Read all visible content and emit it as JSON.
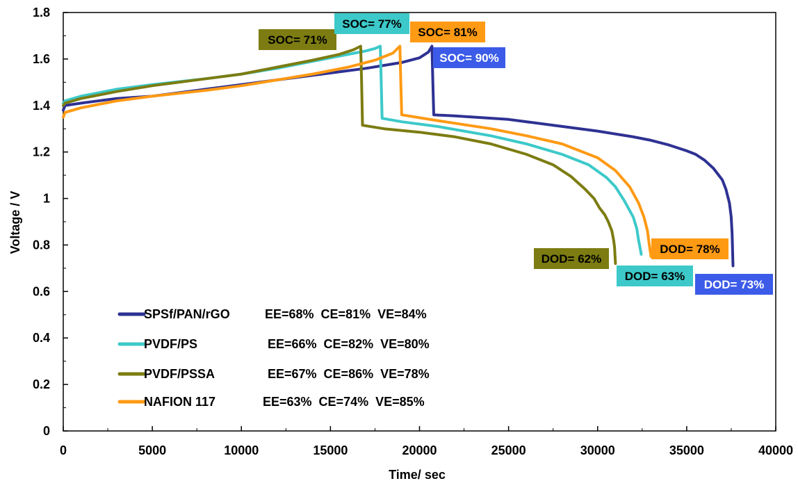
{
  "chart_data": {
    "type": "line",
    "xlabel": "Time/ sec",
    "ylabel": "Voltage / V",
    "xlim": [
      0,
      40000
    ],
    "ylim": [
      0,
      1.8
    ],
    "x_ticks": [
      0,
      5000,
      10000,
      15000,
      20000,
      25000,
      30000,
      35000,
      40000
    ],
    "x_tick_labels": [
      "0",
      "5000",
      "10000",
      "15000",
      "20000",
      "25000",
      "30000",
      "35000",
      "40000"
    ],
    "y_ticks": [
      0,
      0.2,
      0.4,
      0.6,
      0.8,
      1.0,
      1.2,
      1.4,
      1.6,
      1.8
    ],
    "y_tick_labels": [
      "0",
      "0.2",
      "0.4",
      "0.6",
      "0.8",
      "1",
      "1.2",
      "1.4",
      "1.6",
      "1.8"
    ],
    "grid": false,
    "legend_position": "bottom-left",
    "series": [
      {
        "name": "SPSf/PAN/rGO",
        "legend_metrics": "EE=68%  CE=81%  VE=84%",
        "color": "#2E3192",
        "x": [
          0,
          100,
          1000,
          3000,
          5000,
          8000,
          10000,
          12000,
          15000,
          17000,
          19000,
          20000,
          20500,
          20700,
          20750,
          20800,
          22000,
          25000,
          28000,
          30000,
          32000,
          33000,
          34000,
          35000,
          35500,
          36000,
          36500,
          37000,
          37200,
          37400,
          37500,
          37550,
          37600
        ],
        "y": [
          1.38,
          1.4,
          1.41,
          1.43,
          1.44,
          1.47,
          1.49,
          1.51,
          1.54,
          1.56,
          1.585,
          1.605,
          1.63,
          1.655,
          1.5,
          1.36,
          1.355,
          1.34,
          1.31,
          1.29,
          1.265,
          1.25,
          1.23,
          1.205,
          1.19,
          1.165,
          1.13,
          1.08,
          1.04,
          0.98,
          0.92,
          0.85,
          0.71
        ]
      },
      {
        "name": "PVDF/PS",
        "legend_metrics": "EE=66%  CE=82%  VE=80%",
        "color": "#3DC9C9",
        "x": [
          0,
          100,
          1000,
          3000,
          5000,
          8000,
          10000,
          12000,
          14000,
          16000,
          17000,
          17500,
          17800,
          17850,
          17900,
          19000,
          21000,
          24000,
          26000,
          28000,
          29500,
          30500,
          31000,
          31500,
          32000,
          32200,
          32300,
          32400,
          32450
        ],
        "y": [
          1.41,
          1.42,
          1.44,
          1.47,
          1.49,
          1.515,
          1.535,
          1.56,
          1.59,
          1.62,
          1.635,
          1.645,
          1.655,
          1.5,
          1.345,
          1.33,
          1.31,
          1.27,
          1.235,
          1.19,
          1.145,
          1.09,
          1.05,
          0.99,
          0.92,
          0.87,
          0.82,
          0.78,
          0.76
        ]
      },
      {
        "name": "PVDF/PSSA",
        "legend_metrics": "EE=67%  CE=86%  VE=78%",
        "color": "#7C7C12",
        "x": [
          0,
          100,
          1000,
          3000,
          5000,
          8000,
          10000,
          12000,
          14000,
          15500,
          16300,
          16700,
          16750,
          16800,
          18000,
          20000,
          22000,
          24000,
          26000,
          27500,
          28500,
          29300,
          29800,
          30100,
          30400,
          30600,
          30800,
          30900,
          30950,
          31000
        ],
        "y": [
          1.4,
          1.41,
          1.43,
          1.46,
          1.485,
          1.515,
          1.535,
          1.565,
          1.595,
          1.62,
          1.64,
          1.655,
          1.5,
          1.315,
          1.3,
          1.285,
          1.265,
          1.235,
          1.19,
          1.145,
          1.095,
          1.04,
          1.0,
          0.96,
          0.93,
          0.9,
          0.86,
          0.82,
          0.79,
          0.72
        ]
      },
      {
        "name": "NAFION 117",
        "legend_metrics": "EE=63%  CE=74%  VE=85%",
        "color": "#FF9A14",
        "x": [
          0,
          100,
          1000,
          3000,
          5000,
          8000,
          10000,
          12000,
          14000,
          16000,
          17500,
          18500,
          18900,
          18950,
          19000,
          21000,
          24000,
          26000,
          28000,
          30000,
          31000,
          31800,
          32300,
          32600,
          32800,
          32900,
          33000
        ],
        "y": [
          1.35,
          1.37,
          1.39,
          1.42,
          1.44,
          1.465,
          1.485,
          1.51,
          1.535,
          1.565,
          1.595,
          1.625,
          1.655,
          1.5,
          1.36,
          1.335,
          1.3,
          1.27,
          1.235,
          1.175,
          1.12,
          1.05,
          0.98,
          0.92,
          0.86,
          0.8,
          0.75
        ]
      }
    ],
    "annotations": [
      {
        "text": "SOC= 71%",
        "bg": "#7C7C12",
        "fg": "#000000"
      },
      {
        "text": "SOC= 77%",
        "bg": "#3DC9C9",
        "fg": "#000000"
      },
      {
        "text": "SOC= 81%",
        "bg": "#FF9A14",
        "fg": "#000000"
      },
      {
        "text": "SOC= 90%",
        "bg": "#3B5BE8",
        "fg": "#FFFFFF"
      },
      {
        "text": "DOD= 62%",
        "bg": "#7C7C12",
        "fg": "#000000"
      },
      {
        "text": "DOD= 63%",
        "bg": "#3DC9C9",
        "fg": "#000000"
      },
      {
        "text": "DOD= 78%",
        "bg": "#FF9A14",
        "fg": "#000000"
      },
      {
        "text": "DOD= 73%",
        "bg": "#3B5BE8",
        "fg": "#FFFFFF"
      }
    ]
  }
}
